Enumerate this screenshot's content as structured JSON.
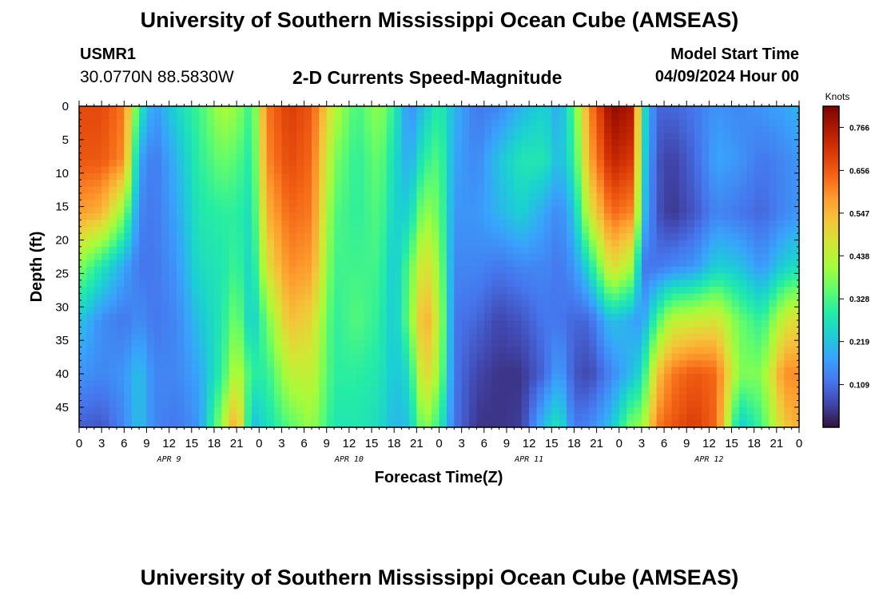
{
  "header": {
    "title": "University of Southern Mississippi Ocean Cube (AMSEAS)",
    "station_id": "USMR1",
    "station_coords": "30.0770N  88.5830W",
    "plot_title": "2-D Currents Speed-Magnitude",
    "model_label": "Model Start Time",
    "model_start": "04/09/2024 Hour 00"
  },
  "footer": {
    "title": "University of Southern Mississippi Ocean Cube (AMSEAS)"
  },
  "chart_data": {
    "type": "heatmap",
    "title": "2-D Currents Speed-Magnitude",
    "xlabel": "Forecast Time(Z)",
    "ylabel": "Depth (ft)",
    "x_range_hours": [
      0,
      96
    ],
    "x_ticks": [
      "0",
      "3",
      "6",
      "9",
      "12",
      "15",
      "18",
      "21",
      "0",
      "3",
      "6",
      "9",
      "12",
      "15",
      "18",
      "21",
      "0",
      "3",
      "6",
      "9",
      "12",
      "15",
      "18",
      "21",
      "0",
      "3",
      "6",
      "9",
      "12",
      "15",
      "18",
      "21",
      "0"
    ],
    "date_labels": [
      {
        "label": "APR 9",
        "hour": 12
      },
      {
        "label": "APR 10",
        "hour": 36
      },
      {
        "label": "APR 11",
        "hour": 60
      },
      {
        "label": "APR 12",
        "hour": 84
      }
    ],
    "y_range_ft": [
      0,
      48
    ],
    "y_ticks": [
      0,
      5,
      10,
      15,
      20,
      25,
      30,
      35,
      40,
      45
    ],
    "colorbar": {
      "unit": "Knots",
      "min": 0.0,
      "max": 0.82,
      "tick_labels": [
        "0.766",
        "0.656",
        "0.547",
        "0.438",
        "0.328",
        "0.219",
        "0.109"
      ],
      "tick_values": [
        0.766,
        0.656,
        0.547,
        0.438,
        0.328,
        0.219,
        0.109
      ],
      "colors": [
        "#30123b",
        "#4145ab",
        "#4675ed",
        "#39a2fc",
        "#1bcfd4",
        "#24eca6",
        "#61fc6c",
        "#a4fc3b",
        "#d1e834",
        "#f3c63a",
        "#fe9b2d",
        "#f36315",
        "#d93806",
        "#b11901",
        "#7a0402"
      ]
    },
    "time_profiles": [
      {
        "hour": 0,
        "values": [
          0.68,
          0.66,
          0.58,
          0.38,
          0.22,
          0.16,
          0.09
        ]
      },
      {
        "hour": 3,
        "values": [
          0.68,
          0.66,
          0.55,
          0.28,
          0.15,
          0.14,
          0.08
        ]
      },
      {
        "hour": 6,
        "values": [
          0.62,
          0.6,
          0.38,
          0.18,
          0.12,
          0.16,
          0.14
        ]
      },
      {
        "hour": 8,
        "values": [
          0.3,
          0.18,
          0.14,
          0.12,
          0.15,
          0.22,
          0.22
        ]
      },
      {
        "hour": 10,
        "values": [
          0.16,
          0.12,
          0.12,
          0.12,
          0.12,
          0.14,
          0.14
        ]
      },
      {
        "hour": 13,
        "values": [
          0.25,
          0.2,
          0.18,
          0.16,
          0.14,
          0.14,
          0.12
        ]
      },
      {
        "hour": 16,
        "values": [
          0.32,
          0.3,
          0.28,
          0.26,
          0.22,
          0.18,
          0.16
        ]
      },
      {
        "hour": 19,
        "values": [
          0.42,
          0.36,
          0.3,
          0.28,
          0.28,
          0.3,
          0.4
        ]
      },
      {
        "hour": 21,
        "values": [
          0.4,
          0.34,
          0.3,
          0.32,
          0.38,
          0.45,
          0.6
        ]
      },
      {
        "hour": 23,
        "values": [
          0.3,
          0.28,
          0.26,
          0.24,
          0.22,
          0.3,
          0.2
        ]
      },
      {
        "hour": 25,
        "values": [
          0.62,
          0.6,
          0.55,
          0.48,
          0.36,
          0.3,
          0.26
        ]
      },
      {
        "hour": 28,
        "values": [
          0.7,
          0.68,
          0.64,
          0.6,
          0.54,
          0.44,
          0.34
        ]
      },
      {
        "hour": 31,
        "values": [
          0.66,
          0.64,
          0.62,
          0.58,
          0.5,
          0.45,
          0.4
        ]
      },
      {
        "hour": 34,
        "values": [
          0.44,
          0.38,
          0.34,
          0.32,
          0.3,
          0.3,
          0.28
        ]
      },
      {
        "hour": 37,
        "values": [
          0.32,
          0.3,
          0.3,
          0.32,
          0.34,
          0.3,
          0.28
        ]
      },
      {
        "hour": 40,
        "values": [
          0.4,
          0.36,
          0.34,
          0.32,
          0.3,
          0.28,
          0.26
        ]
      },
      {
        "hour": 42,
        "values": [
          0.3,
          0.26,
          0.24,
          0.22,
          0.22,
          0.22,
          0.2
        ]
      },
      {
        "hour": 44,
        "values": [
          0.14,
          0.18,
          0.24,
          0.34,
          0.36,
          0.26,
          0.22
        ]
      },
      {
        "hour": 46,
        "values": [
          0.22,
          0.3,
          0.4,
          0.5,
          0.58,
          0.52,
          0.4
        ]
      },
      {
        "hour": 48,
        "values": [
          0.3,
          0.34,
          0.36,
          0.4,
          0.44,
          0.4,
          0.3
        ]
      },
      {
        "hour": 50,
        "values": [
          0.2,
          0.18,
          0.16,
          0.14,
          0.12,
          0.12,
          0.12
        ]
      },
      {
        "hour": 53,
        "values": [
          0.12,
          0.14,
          0.16,
          0.14,
          0.1,
          0.06,
          0.04
        ]
      },
      {
        "hour": 56,
        "values": [
          0.14,
          0.22,
          0.2,
          0.12,
          0.06,
          0.04,
          0.04
        ]
      },
      {
        "hour": 59,
        "values": [
          0.2,
          0.28,
          0.24,
          0.14,
          0.08,
          0.04,
          0.05
        ]
      },
      {
        "hour": 62,
        "values": [
          0.24,
          0.28,
          0.18,
          0.14,
          0.12,
          0.1,
          0.22
        ]
      },
      {
        "hour": 64,
        "values": [
          0.18,
          0.2,
          0.14,
          0.12,
          0.12,
          0.18,
          0.28
        ]
      },
      {
        "hour": 66,
        "values": [
          0.34,
          0.3,
          0.22,
          0.16,
          0.1,
          0.08,
          0.12
        ]
      },
      {
        "hour": 68,
        "values": [
          0.6,
          0.56,
          0.46,
          0.26,
          0.1,
          0.06,
          0.14
        ]
      },
      {
        "hour": 71,
        "values": [
          0.8,
          0.74,
          0.64,
          0.5,
          0.22,
          0.14,
          0.22
        ]
      },
      {
        "hour": 74,
        "values": [
          0.76,
          0.7,
          0.6,
          0.4,
          0.18,
          0.22,
          0.4
        ]
      },
      {
        "hour": 75,
        "values": [
          0.3,
          0.28,
          0.24,
          0.12,
          0.16,
          0.26,
          0.38
        ]
      },
      {
        "hour": 77,
        "values": [
          0.1,
          0.08,
          0.08,
          0.12,
          0.32,
          0.52,
          0.62
        ]
      },
      {
        "hour": 79,
        "values": [
          0.1,
          0.05,
          0.04,
          0.14,
          0.44,
          0.62,
          0.66
        ]
      },
      {
        "hour": 82,
        "values": [
          0.12,
          0.1,
          0.08,
          0.16,
          0.46,
          0.66,
          0.7
        ]
      },
      {
        "hour": 85,
        "values": [
          0.16,
          0.18,
          0.14,
          0.24,
          0.48,
          0.64,
          0.64
        ]
      },
      {
        "hour": 88,
        "values": [
          0.14,
          0.16,
          0.12,
          0.22,
          0.36,
          0.38,
          0.22
        ]
      },
      {
        "hour": 91,
        "values": [
          0.16,
          0.12,
          0.1,
          0.16,
          0.3,
          0.38,
          0.32
        ]
      },
      {
        "hour": 94,
        "values": [
          0.18,
          0.14,
          0.14,
          0.24,
          0.46,
          0.6,
          0.52
        ]
      },
      {
        "hour": 96,
        "values": [
          0.2,
          0.16,
          0.16,
          0.26,
          0.5,
          0.6,
          0.56
        ]
      }
    ],
    "profile_depths_ft": [
      0,
      8,
      16,
      24,
      32,
      40,
      48
    ]
  }
}
